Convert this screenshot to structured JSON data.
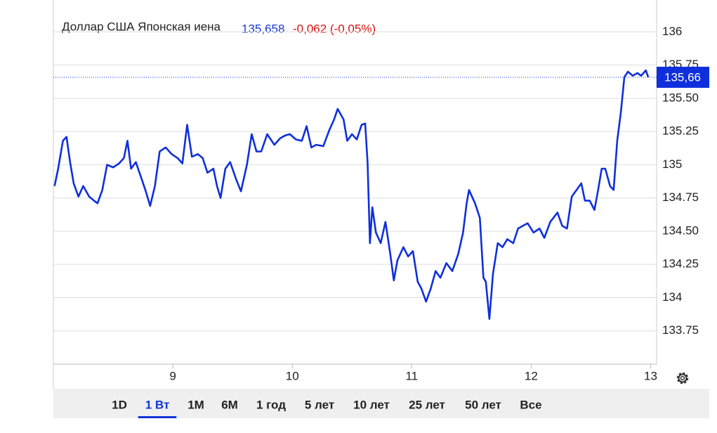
{
  "chart_data": {
    "type": "line",
    "title": "Доллар США Японская иена",
    "last_price": "135,658",
    "change": "-0,062 (-0,05%)",
    "x": [
      8.01,
      8.04,
      8.08,
      8.11,
      8.14,
      8.17,
      8.21,
      8.25,
      8.3,
      8.34,
      8.37,
      8.41,
      8.45,
      8.5,
      8.55,
      8.59,
      8.62,
      8.65,
      8.69,
      8.74,
      8.77,
      8.81,
      8.85,
      8.89,
      8.94,
      8.99,
      9.04,
      9.08,
      9.12,
      9.16,
      9.21,
      9.25,
      9.29,
      9.34,
      9.37,
      9.4,
      9.44,
      9.48,
      9.53,
      9.57,
      9.62,
      9.66,
      9.7,
      9.74,
      9.79,
      9.85,
      9.9,
      9.94,
      9.98,
      10.03,
      10.08,
      10.12,
      10.16,
      10.2,
      10.26,
      10.31,
      10.35,
      10.38,
      10.43,
      10.46,
      10.5,
      10.54,
      10.58,
      10.61,
      10.63,
      10.65,
      10.67,
      10.7,
      10.74,
      10.78,
      10.82,
      10.85,
      10.88,
      10.93,
      10.97,
      11.01,
      11.05,
      11.08,
      11.12,
      11.16,
      11.2,
      11.24,
      11.29,
      11.34,
      11.39,
      11.43,
      11.46,
      11.48,
      11.53,
      11.57,
      11.6,
      11.62,
      11.65,
      11.68,
      11.72,
      11.76,
      11.8,
      11.85,
      11.89,
      11.93,
      11.97,
      12.02,
      12.07,
      12.11,
      12.16,
      12.22,
      12.26,
      12.3,
      12.34,
      12.38,
      12.42,
      12.45,
      12.49,
      12.53,
      12.56,
      12.59,
      12.62,
      12.66,
      12.69,
      12.72,
      12.75,
      12.78,
      12.81,
      12.85,
      12.89,
      12.92,
      12.96,
      12.98
    ],
    "series": [
      {
        "name": "Доллар США Японская иена",
        "color": "#0f2fdc",
        "values": [
          134.84,
          134.97,
          135.18,
          135.21,
          135.02,
          134.86,
          134.76,
          134.84,
          134.76,
          134.73,
          134.71,
          134.81,
          135.0,
          134.98,
          135.01,
          135.05,
          135.18,
          134.97,
          135.02,
          134.89,
          134.81,
          134.69,
          134.84,
          135.1,
          135.13,
          135.08,
          135.05,
          135.01,
          135.3,
          135.06,
          135.08,
          135.05,
          134.94,
          134.97,
          134.84,
          134.75,
          134.97,
          135.02,
          134.89,
          134.8,
          135.0,
          135.23,
          135.1,
          135.1,
          135.23,
          135.15,
          135.2,
          135.22,
          135.23,
          135.19,
          135.18,
          135.29,
          135.13,
          135.15,
          135.14,
          135.26,
          135.34,
          135.42,
          135.34,
          135.18,
          135.23,
          135.19,
          135.3,
          135.31,
          135.02,
          134.41,
          134.68,
          134.49,
          134.41,
          134.57,
          134.33,
          134.13,
          134.28,
          134.38,
          134.31,
          134.35,
          134.12,
          134.07,
          133.97,
          134.07,
          134.2,
          134.15,
          134.26,
          134.2,
          134.33,
          134.49,
          134.71,
          134.81,
          134.71,
          134.6,
          134.15,
          134.12,
          133.84,
          134.18,
          134.41,
          134.38,
          134.44,
          134.41,
          134.52,
          134.54,
          134.56,
          134.49,
          134.52,
          134.45,
          134.57,
          134.64,
          134.54,
          134.52,
          134.76,
          134.81,
          134.86,
          134.73,
          134.73,
          134.66,
          134.81,
          134.97,
          134.97,
          134.84,
          134.81,
          135.18,
          135.39,
          135.66,
          135.7,
          135.67,
          135.69,
          135.67,
          135.71,
          135.658
        ]
      }
    ],
    "current": {
      "value": 135.658,
      "label": "135,66"
    },
    "xlim": [
      8.0,
      13.05
    ],
    "xticks": [
      9,
      10,
      11,
      12,
      13
    ],
    "ylim": [
      133.5,
      136.25
    ],
    "yticks": [
      136,
      135.75,
      {
        "value": 135.5,
        "label": "135.50"
      },
      135.25,
      135,
      134.75,
      {
        "value": 134.5,
        "label": "134.50"
      },
      134.25,
      134,
      133.75
    ],
    "grid": true
  },
  "ui": {
    "tabs": [
      "1D",
      "1 Вт",
      "1M",
      "6M",
      "1 год",
      "5 лет",
      "10 лет",
      "25 лет",
      "50 лет",
      "Все"
    ],
    "active": "1 Вт"
  }
}
